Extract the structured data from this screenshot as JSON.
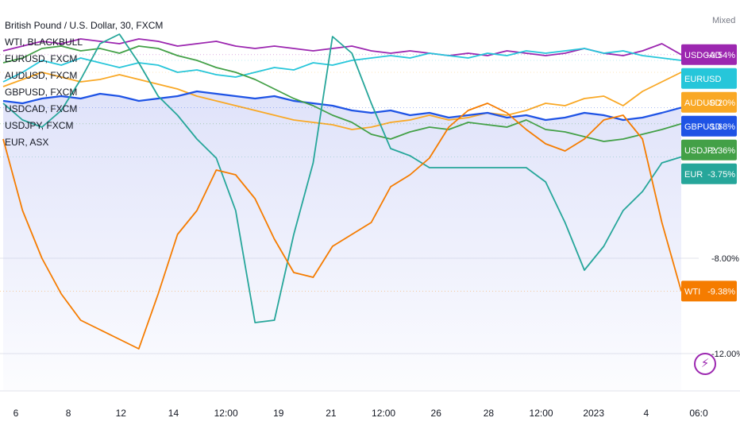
{
  "legend": [
    "British Pound / U.S. Dollar, 30, FXCM",
    "WTI, BLACKBULL",
    "EURUSD, FXCM",
    "AUDUSD, FXCM",
    "GBPUSD, FXCM",
    "USDCAD, FXCM",
    "USDJPY, FXCM",
    "EUR, ASX"
  ],
  "scale_mode": "Mixed",
  "chart_data": {
    "type": "line",
    "title": "British Pound / U.S. Dollar, 30, FXCM",
    "y_unit": "%",
    "ylim": [
      -13.5,
      2.5
    ],
    "y_ticks": [
      {
        "value": -8.0,
        "label": "-8.00%"
      },
      {
        "value": -12.0,
        "label": "-12.00%"
      }
    ],
    "x_ticks": [
      "6",
      "8",
      "12",
      "14",
      "12:00",
      "19",
      "21",
      "12:00",
      "26",
      "28",
      "12:00",
      "2023",
      "4",
      "06:0"
    ],
    "series": [
      {
        "name": "USDCAD",
        "color": "#9c27b0",
        "last_label": "+0.54%",
        "last": 0.54,
        "values": [
          0.7,
          0.9,
          1.1,
          1.0,
          1.2,
          1.1,
          1.0,
          1.2,
          1.1,
          0.9,
          1.0,
          1.1,
          0.9,
          0.8,
          0.9,
          0.8,
          0.7,
          0.8,
          0.9,
          0.7,
          0.6,
          0.7,
          0.6,
          0.5,
          0.6,
          0.5,
          0.7,
          0.6,
          0.5,
          0.6,
          0.8,
          0.6,
          0.5,
          0.7,
          1.0,
          0.54
        ]
      },
      {
        "name": "EURUSD",
        "color": "#26c6da",
        "last_label": "",
        "last": 0.3,
        "values": [
          -0.6,
          -0.2,
          0.3,
          0.1,
          0.4,
          0.2,
          0.0,
          0.2,
          0.1,
          -0.2,
          -0.1,
          -0.3,
          -0.4,
          -0.2,
          0.0,
          -0.1,
          0.2,
          0.1,
          0.3,
          0.4,
          0.5,
          0.4,
          0.6,
          0.5,
          0.4,
          0.6,
          0.5,
          0.7,
          0.6,
          0.7,
          0.8,
          0.6,
          0.7,
          0.5,
          0.4,
          0.3
        ]
      },
      {
        "name": "AUDUSD",
        "color": "#f9a825",
        "last_label": "-0.20%",
        "last": -0.2,
        "values": [
          -0.8,
          -0.5,
          -0.2,
          -0.4,
          -0.6,
          -0.5,
          -0.3,
          -0.5,
          -0.7,
          -0.9,
          -1.2,
          -1.4,
          -1.6,
          -1.8,
          -2.0,
          -2.2,
          -2.3,
          -2.4,
          -2.6,
          -2.5,
          -2.3,
          -2.2,
          -2.0,
          -2.2,
          -2.1,
          -1.9,
          -2.0,
          -1.8,
          -1.5,
          -1.6,
          -1.3,
          -1.2,
          -1.6,
          -1.0,
          -0.6,
          -0.2
        ]
      },
      {
        "name": "GBPUSD",
        "color": "#1e53e5",
        "last_label": "-1.68%",
        "last": -1.68,
        "values": [
          -1.4,
          -1.5,
          -1.3,
          -1.2,
          -1.3,
          -1.1,
          -1.2,
          -1.4,
          -1.3,
          -1.2,
          -1.0,
          -1.1,
          -1.2,
          -1.3,
          -1.2,
          -1.4,
          -1.5,
          -1.6,
          -1.8,
          -1.9,
          -1.8,
          -2.0,
          -1.9,
          -2.1,
          -2.0,
          -1.9,
          -2.1,
          -2.0,
          -2.2,
          -2.1,
          -1.9,
          -2.0,
          -2.2,
          -2.1,
          -1.9,
          -1.68
        ]
      },
      {
        "name": "USDJPY",
        "color": "#43a047",
        "last_label": "-2.36%",
        "last": -2.36,
        "values": [
          0.2,
          0.4,
          0.8,
          0.9,
          0.7,
          0.8,
          0.6,
          0.9,
          0.8,
          0.5,
          0.3,
          0.0,
          -0.2,
          -0.5,
          -0.9,
          -1.3,
          -1.6,
          -2.0,
          -2.3,
          -2.8,
          -3.0,
          -2.7,
          -2.5,
          -2.6,
          -2.3,
          -2.4,
          -2.5,
          -2.2,
          -2.6,
          -2.7,
          -2.9,
          -3.1,
          -3.0,
          -2.8,
          -2.6,
          -2.36
        ]
      },
      {
        "name": "EUR",
        "color": "#26a69a",
        "last_label": "-3.75%",
        "last": -3.75,
        "values": [
          -1.5,
          -2.2,
          -2.5,
          -1.8,
          -0.5,
          1.0,
          1.4,
          0.2,
          -1.2,
          -2.0,
          -3.0,
          -3.8,
          -6.0,
          -10.7,
          -10.6,
          -7.0,
          -4.0,
          1.3,
          0.6,
          -1.5,
          -3.4,
          -3.7,
          -4.2,
          -4.2,
          -4.2,
          -4.2,
          -4.2,
          -4.2,
          -4.8,
          -6.5,
          -8.5,
          -7.5,
          -6.0,
          -5.2,
          -4.0,
          -3.75
        ]
      },
      {
        "name": "WTI",
        "color": "#f57c00",
        "last_label": "-9.38%",
        "last": -9.38,
        "values": [
          -3.0,
          -6.0,
          -8.0,
          -9.5,
          -10.6,
          -11.0,
          -11.4,
          -11.8,
          -9.5,
          -7.0,
          -6.0,
          -4.3,
          -4.5,
          -5.5,
          -7.2,
          -8.6,
          -8.8,
          -7.5,
          -7.0,
          -6.5,
          -5.0,
          -4.5,
          -3.8,
          -2.5,
          -1.8,
          -1.5,
          -1.9,
          -2.6,
          -3.2,
          -3.5,
          -3.0,
          -2.2,
          -2.0,
          -3.0,
          -6.5,
          -9.38
        ]
      }
    ],
    "grid": true
  }
}
